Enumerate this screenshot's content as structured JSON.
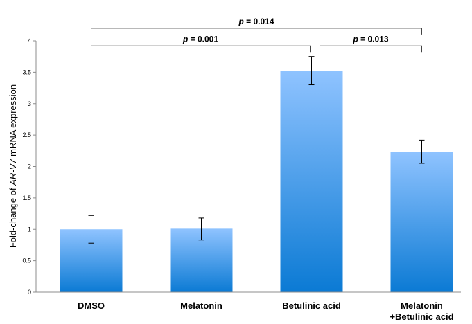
{
  "chart_data": {
    "type": "bar",
    "categories": [
      "DMSO",
      "Melatonin",
      "Betulinic acid",
      "Melatonin\n+Betulinic acid"
    ],
    "values": [
      1.0,
      1.01,
      3.52,
      2.23
    ],
    "errors_upper": [
      1.22,
      1.18,
      3.75,
      2.42
    ],
    "errors_lower": [
      0.78,
      0.83,
      3.3,
      2.05
    ],
    "ylabel_parts": [
      "Fold-change of ",
      "AR-V7",
      " mRNA expression"
    ],
    "ylim": [
      0,
      4
    ],
    "yticks": [
      "0",
      "0.5",
      "1",
      "1.5",
      "2",
      "2.5",
      "3",
      "3.5",
      "4"
    ],
    "grid": false,
    "bar_color_top": "#8fc3ff",
    "bar_color_bottom": "#0b7ad4",
    "significance": [
      {
        "from": 0,
        "to": 3,
        "label_p": "p",
        "label_rest": " = 0.014",
        "y": 4.2
      },
      {
        "from": 0,
        "to": 2,
        "label_p": "p",
        "label_rest": " = 0.001",
        "y": 3.92
      },
      {
        "from": 2,
        "to": 3,
        "label_p": "p",
        "label_rest": " = 0.013",
        "y": 3.92
      }
    ]
  }
}
